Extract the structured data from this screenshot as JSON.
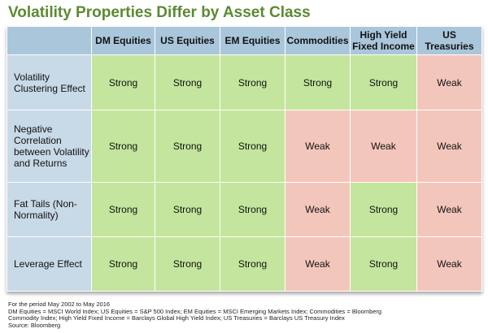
{
  "title": "Volatility Properties Differ by Asset Class",
  "columns": [
    "",
    "DM Equities",
    "US Equities",
    "EM Equities",
    "Commodities",
    "High Yield Fixed Income",
    "US Treasuries"
  ],
  "rows": [
    {
      "label": "Volatility Clustering Effect",
      "values": [
        "Strong",
        "Strong",
        "Strong",
        "Strong",
        "Strong",
        "Weak"
      ]
    },
    {
      "label": "Negative Correlation between Volatility and Returns",
      "values": [
        "Strong",
        "Strong",
        "Strong",
        "Weak",
        "Weak",
        "Weak"
      ]
    },
    {
      "label": "Fat Tails (Non-Normality)",
      "values": [
        "Strong",
        "Strong",
        "Strong",
        "Weak",
        "Strong",
        "Weak"
      ]
    },
    {
      "label": "Leverage Effect",
      "values": [
        "Strong",
        "Strong",
        "Strong",
        "Weak",
        "Strong",
        "Weak"
      ]
    }
  ],
  "footnotes": [
    "For the period May 2002 to May 2016",
    "DM Equities = MSCI World Index; US Equities = S&P 500 Index; EM Equities = MSCI Emerging Markets Index; Commodities = Bloomberg Commodity Index; High Yield Fixed Income = Barclays Global High Yield Index; US Treasuries = Barclays US Treasury Index",
    "Source: Bloomberg"
  ],
  "colors": {
    "strong": "#c4e59d",
    "weak": "#f3c6bb",
    "header": "#a9c6db",
    "title": "#5b8a32"
  }
}
